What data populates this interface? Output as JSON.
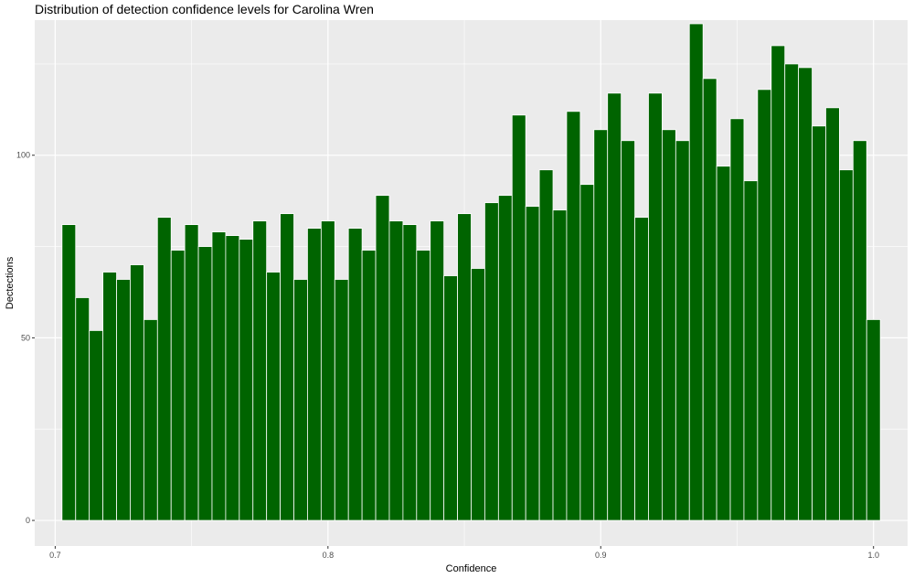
{
  "chart_data": {
    "type": "bar",
    "title": "Distribution of detection confidence levels for Carolina Wren",
    "xlabel": "Confidence",
    "ylabel": "Dectections",
    "xlim": [
      0.6925,
      1.0125
    ],
    "ylim": [
      -7,
      137
    ],
    "x_ticks": [
      0.7,
      0.8,
      0.9,
      1.0
    ],
    "x_tick_labels": [
      "0.7",
      "0.8",
      "0.9",
      "1.0"
    ],
    "y_ticks": [
      0,
      50,
      100
    ],
    "y_tick_labels": [
      "0",
      "50",
      "100"
    ],
    "grid": true,
    "bin_width": 0.005,
    "bar_color": "#006400",
    "bar_outline": "#ffffff",
    "panel_background": "#ebebeb",
    "x": [
      0.705,
      0.71,
      0.715,
      0.72,
      0.725,
      0.73,
      0.735,
      0.74,
      0.745,
      0.75,
      0.755,
      0.76,
      0.765,
      0.77,
      0.775,
      0.78,
      0.785,
      0.79,
      0.795,
      0.8,
      0.805,
      0.81,
      0.815,
      0.82,
      0.825,
      0.83,
      0.835,
      0.84,
      0.845,
      0.85,
      0.855,
      0.86,
      0.865,
      0.87,
      0.875,
      0.88,
      0.885,
      0.89,
      0.895,
      0.9,
      0.905,
      0.91,
      0.915,
      0.92,
      0.925,
      0.93,
      0.935,
      0.94,
      0.945,
      0.95,
      0.955,
      0.96,
      0.965,
      0.97,
      0.975,
      0.98,
      0.985,
      0.99,
      0.995,
      1.0
    ],
    "values": [
      81,
      61,
      52,
      68,
      66,
      70,
      55,
      83,
      74,
      81,
      75,
      79,
      78,
      77,
      82,
      68,
      84,
      66,
      80,
      82,
      66,
      80,
      74,
      89,
      82,
      81,
      74,
      82,
      67,
      84,
      69,
      87,
      89,
      111,
      86,
      96,
      85,
      112,
      92,
      107,
      117,
      104,
      83,
      117,
      107,
      104,
      136,
      121,
      97,
      110,
      93,
      118,
      130,
      125,
      124,
      108,
      113,
      96,
      104,
      55
    ]
  }
}
